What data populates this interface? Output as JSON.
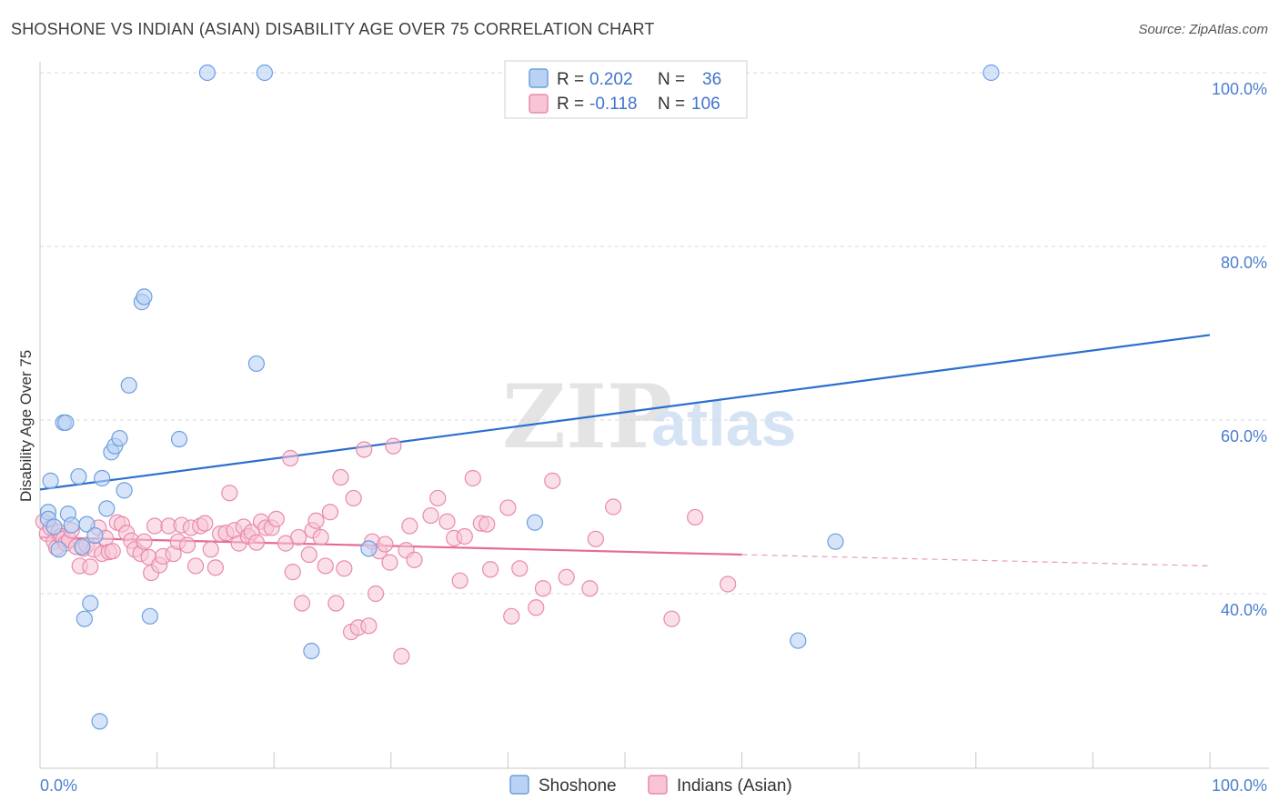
{
  "title": "SHOSHONE VS INDIAN (ASIAN) DISABILITY AGE OVER 75 CORRELATION CHART",
  "source": "Source: ZipAtlas.com",
  "watermark": {
    "zip": "ZIP",
    "atlas": "atlas"
  },
  "legend": {
    "shoshone": {
      "r_label": "R = ",
      "r_value": "0.202",
      "n_label": "N = ",
      "n_value": "36"
    },
    "indian": {
      "r_label": "R = ",
      "r_value": "-0.118",
      "n_label": "N = ",
      "n_value": "106"
    }
  },
  "bottom_legend": {
    "shoshone": "Shoshone",
    "indian": "Indians (Asian)"
  },
  "colors": {
    "shoshone_fill": "#b9d2f3",
    "shoshone_stroke": "#6d9fde",
    "shoshone_line": "#2a6fcf",
    "indian_fill": "#f8c4d6",
    "indian_stroke": "#e88aab",
    "indian_line": "#e56b95",
    "axis_label": "#4a7fd0",
    "grid": "#d9d9d9"
  },
  "chart_data": {
    "type": "scatter",
    "xlabel": "",
    "ylabel": "Disability Age Over 75",
    "xlim": [
      0,
      100
    ],
    "ylim": [
      20,
      100
    ],
    "x_tick_labels": [
      "0.0%",
      "100.0%"
    ],
    "y_ticks": [
      40,
      60,
      80,
      100
    ],
    "y_tick_labels": [
      "40.0%",
      "60.0%",
      "80.0%",
      "100.0%"
    ],
    "grid": true,
    "legend_position": "top-center",
    "series": [
      {
        "name": "Shoshone",
        "points": [
          [
            0.7,
            49.4
          ],
          [
            0.7,
            48.6
          ],
          [
            0.9,
            53.0
          ],
          [
            1.2,
            47.7
          ],
          [
            1.6,
            45.1
          ],
          [
            2.0,
            59.7
          ],
          [
            2.2,
            59.7
          ],
          [
            2.4,
            49.2
          ],
          [
            2.7,
            47.9
          ],
          [
            3.3,
            53.5
          ],
          [
            3.6,
            45.4
          ],
          [
            3.8,
            37.1
          ],
          [
            4.0,
            48.0
          ],
          [
            4.3,
            38.9
          ],
          [
            4.7,
            46.7
          ],
          [
            5.1,
            25.3
          ],
          [
            5.3,
            53.3
          ],
          [
            5.7,
            49.8
          ],
          [
            6.1,
            56.3
          ],
          [
            6.4,
            57.0
          ],
          [
            6.8,
            57.9
          ],
          [
            7.2,
            51.9
          ],
          [
            7.6,
            64.0
          ],
          [
            8.7,
            73.6
          ],
          [
            8.9,
            74.2
          ],
          [
            9.4,
            37.4
          ],
          [
            11.9,
            57.8
          ],
          [
            14.3,
            100.0
          ],
          [
            18.5,
            66.5
          ],
          [
            19.2,
            100.0
          ],
          [
            23.2,
            33.4
          ],
          [
            28.1,
            45.2
          ],
          [
            42.3,
            48.2
          ],
          [
            64.8,
            34.6
          ],
          [
            68.0,
            46.0
          ],
          [
            81.3,
            100.0
          ]
        ]
      },
      {
        "name": "Indians (Asian)",
        "points": [
          [
            0.3,
            48.3
          ],
          [
            0.6,
            46.9
          ],
          [
            0.9,
            47.6
          ],
          [
            1.2,
            46.0
          ],
          [
            1.4,
            45.3
          ],
          [
            1.6,
            47.1
          ],
          [
            1.8,
            46.6
          ],
          [
            2.0,
            46.3
          ],
          [
            2.2,
            45.8
          ],
          [
            2.5,
            46.2
          ],
          [
            2.7,
            47.3
          ],
          [
            3.1,
            45.4
          ],
          [
            3.4,
            43.2
          ],
          [
            3.7,
            45.2
          ],
          [
            4.0,
            45.6
          ],
          [
            4.3,
            43.1
          ],
          [
            4.6,
            45.1
          ],
          [
            5.0,
            47.6
          ],
          [
            5.3,
            44.6
          ],
          [
            5.6,
            46.4
          ],
          [
            5.9,
            44.8
          ],
          [
            6.2,
            44.9
          ],
          [
            6.6,
            48.2
          ],
          [
            7.0,
            48.0
          ],
          [
            7.4,
            47.0
          ],
          [
            7.8,
            46.1
          ],
          [
            8.1,
            45.1
          ],
          [
            8.6,
            44.6
          ],
          [
            8.9,
            46.0
          ],
          [
            9.3,
            44.2
          ],
          [
            9.5,
            42.4
          ],
          [
            9.8,
            47.8
          ],
          [
            10.2,
            43.3
          ],
          [
            10.5,
            44.3
          ],
          [
            11.0,
            47.8
          ],
          [
            11.4,
            44.6
          ],
          [
            11.8,
            46.0
          ],
          [
            12.1,
            47.9
          ],
          [
            12.6,
            45.6
          ],
          [
            12.9,
            47.6
          ],
          [
            13.3,
            43.2
          ],
          [
            13.7,
            47.8
          ],
          [
            14.1,
            48.1
          ],
          [
            14.6,
            45.1
          ],
          [
            15.0,
            43.0
          ],
          [
            15.4,
            46.9
          ],
          [
            15.9,
            47.0
          ],
          [
            16.2,
            51.6
          ],
          [
            16.6,
            47.3
          ],
          [
            17.0,
            45.8
          ],
          [
            17.4,
            47.7
          ],
          [
            17.8,
            46.6
          ],
          [
            18.1,
            47.1
          ],
          [
            18.5,
            45.9
          ],
          [
            18.9,
            48.3
          ],
          [
            19.3,
            47.6
          ],
          [
            19.8,
            47.6
          ],
          [
            20.2,
            48.6
          ],
          [
            21.0,
            45.8
          ],
          [
            21.4,
            55.6
          ],
          [
            21.6,
            42.5
          ],
          [
            22.1,
            46.5
          ],
          [
            22.4,
            38.9
          ],
          [
            23.0,
            44.5
          ],
          [
            23.3,
            47.3
          ],
          [
            23.6,
            48.4
          ],
          [
            24.0,
            46.5
          ],
          [
            24.4,
            43.2
          ],
          [
            24.8,
            49.4
          ],
          [
            25.3,
            38.9
          ],
          [
            25.7,
            53.4
          ],
          [
            26.0,
            42.9
          ],
          [
            26.6,
            35.6
          ],
          [
            26.8,
            51.0
          ],
          [
            27.2,
            36.1
          ],
          [
            27.7,
            56.6
          ],
          [
            28.1,
            36.3
          ],
          [
            28.4,
            46.0
          ],
          [
            28.7,
            40.0
          ],
          [
            29.0,
            44.9
          ],
          [
            29.5,
            45.7
          ],
          [
            29.9,
            43.6
          ],
          [
            30.2,
            57.0
          ],
          [
            30.9,
            32.8
          ],
          [
            31.3,
            45.0
          ],
          [
            31.6,
            47.8
          ],
          [
            32.0,
            43.9
          ],
          [
            33.4,
            49.0
          ],
          [
            34.0,
            51.0
          ],
          [
            34.8,
            48.3
          ],
          [
            35.4,
            46.4
          ],
          [
            35.9,
            41.5
          ],
          [
            36.3,
            46.6
          ],
          [
            37.0,
            53.3
          ],
          [
            37.7,
            48.1
          ],
          [
            38.2,
            48.0
          ],
          [
            38.5,
            42.8
          ],
          [
            40.0,
            49.9
          ],
          [
            40.3,
            37.4
          ],
          [
            41.0,
            42.9
          ],
          [
            42.4,
            38.4
          ],
          [
            43.0,
            40.6
          ],
          [
            43.8,
            53.0
          ],
          [
            45.0,
            41.9
          ],
          [
            47.0,
            40.6
          ],
          [
            47.5,
            46.3
          ],
          [
            49.0,
            50.0
          ],
          [
            54.0,
            37.1
          ],
          [
            56.0,
            48.8
          ],
          [
            58.8,
            41.1
          ]
        ]
      }
    ],
    "trend_lines": [
      {
        "series": "Shoshone",
        "x": [
          0,
          100
        ],
        "y": [
          52.0,
          69.8
        ],
        "style": "solid"
      },
      {
        "series": "Indians (Asian)",
        "x": [
          0,
          60
        ],
        "y": [
          46.5,
          44.5
        ],
        "style": "solid"
      },
      {
        "series": "Indians (Asian)",
        "x": [
          60,
          100
        ],
        "y": [
          44.5,
          43.2
        ],
        "style": "dashed"
      }
    ]
  }
}
